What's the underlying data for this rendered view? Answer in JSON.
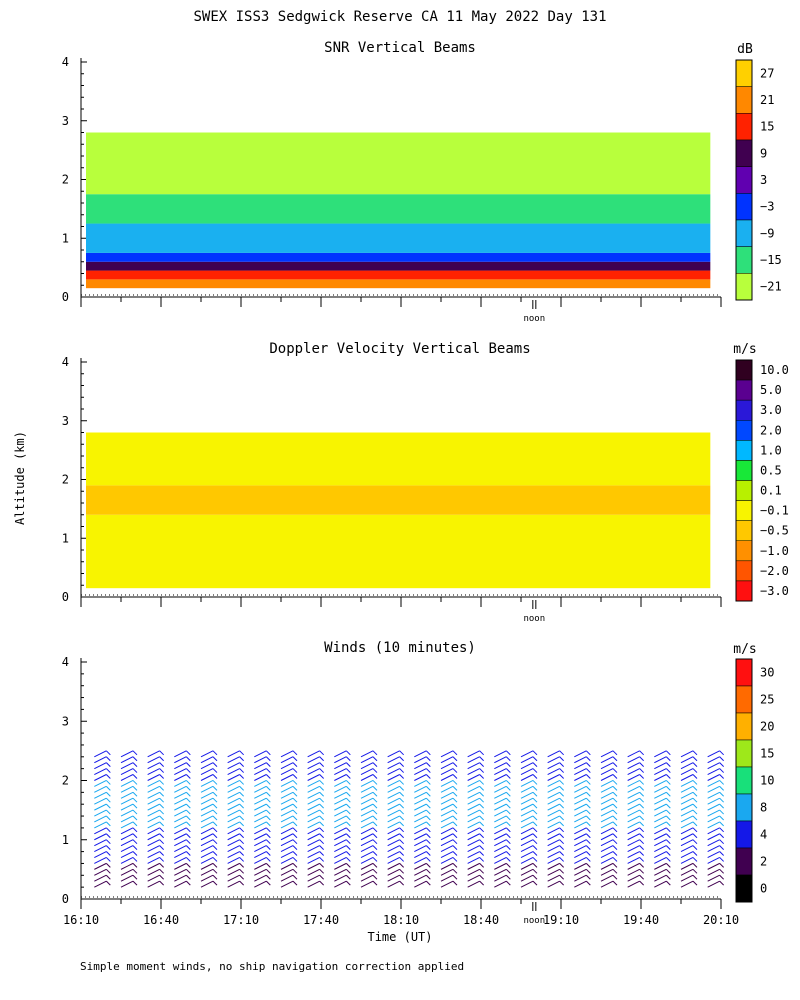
{
  "title": "SWEX ISS3 Sedgwick Reserve CA  11 May 2022 Day 131",
  "y_axis_label": "Altitude (km)",
  "x_axis_label": "Time (UT)",
  "footnote": "Simple moment winds, no ship navigation correction applied",
  "noon_label": "noon",
  "chart_data": [
    {
      "type": "heatmap",
      "title": "SNR Vertical Beams",
      "unit": "dB",
      "ylim": [
        0,
        4
      ],
      "yticks": [
        "0",
        "1",
        "2",
        "3",
        "4"
      ],
      "colorbar": {
        "labels": [
          "27",
          "21",
          "15",
          "9",
          "3",
          "−3",
          "−9",
          "−15",
          "−21"
        ],
        "colors": [
          "#ffd000",
          "#ff8800",
          "#ff2200",
          "#400050",
          "#6000b0",
          "#0033ff",
          "#1ab0f0",
          "#2ee07a",
          "#b8ff3c"
        ]
      },
      "profile_colors_by_altitude": [
        {
          "below_km": 0.3,
          "color": "#ff8800"
        },
        {
          "below_km": 0.45,
          "color": "#ff2200"
        },
        {
          "below_km": 0.6,
          "color": "#400050"
        },
        {
          "below_km": 0.75,
          "color": "#0033ff"
        },
        {
          "below_km": 1.25,
          "color": "#1ab0f0"
        },
        {
          "below_km": 1.75,
          "color": "#2ee07a"
        },
        {
          "below_km": 2.8,
          "color": "#b8ff3c"
        }
      ]
    },
    {
      "type": "heatmap",
      "title": "Doppler Velocity Vertical Beams",
      "unit": "m/s",
      "ylim": [
        0,
        4
      ],
      "yticks": [
        "0",
        "1",
        "2",
        "3",
        "4"
      ],
      "colorbar": {
        "labels": [
          "10.0",
          "5.0",
          "3.0",
          "2.0",
          "1.0",
          "0.5",
          "0.1",
          "−0.1",
          "−0.5",
          "−1.0",
          "−2.0",
          "−3.0"
        ],
        "colors": [
          "#300020",
          "#5a0090",
          "#2a18d8",
          "#0048ff",
          "#00b8ff",
          "#18e838",
          "#b8f000",
          "#f8f400",
          "#ffc800",
          "#ff9000",
          "#ff5500",
          "#ff1010"
        ]
      },
      "profile_colors_by_altitude": [
        {
          "below_km": 1.4,
          "color": "#f8f400"
        },
        {
          "below_km": 1.9,
          "color": "#ffc800"
        },
        {
          "below_km": 2.8,
          "color": "#f8f400"
        }
      ]
    },
    {
      "type": "scatter",
      "title": "Winds (10 minutes)",
      "unit": "m/s",
      "ylim": [
        0,
        4
      ],
      "yticks": [
        "0",
        "1",
        "2",
        "3",
        "4"
      ],
      "colorbar": {
        "labels": [
          "30",
          "25",
          "20",
          "15",
          "10",
          "8",
          "4",
          "2",
          "0"
        ],
        "colors": [
          "#ff1010",
          "#ff6a00",
          "#ffb000",
          "#9ee81a",
          "#18e07a",
          "#1aa8f0",
          "#1418e8",
          "#400050",
          "#000000"
        ]
      },
      "profile_colors_by_altitude": [
        {
          "below_km": 0.6,
          "color": "#400050"
        },
        {
          "below_km": 1.2,
          "color": "#1418e8"
        },
        {
          "below_km": 2.0,
          "color": "#1aa8f0"
        },
        {
          "below_km": 2.6,
          "color": "#1418e8"
        }
      ]
    }
  ],
  "x_axis": {
    "range_hours_utc": [
      16.1667,
      20.1667
    ],
    "tick_labels": [
      {
        "t": 16.1667,
        "label": "16:10"
      },
      {
        "t": 16.6667,
        "label": "16:40"
      },
      {
        "t": 17.1667,
        "label": "17:10"
      },
      {
        "t": 17.6667,
        "label": "17:40"
      },
      {
        "t": 18.1667,
        "label": "18:10"
      },
      {
        "t": 18.6667,
        "label": "18:40"
      },
      {
        "t": 19.1667,
        "label": "19:10"
      },
      {
        "t": 19.6667,
        "label": "19:40"
      },
      {
        "t": 20.1667,
        "label": "20:10"
      }
    ],
    "noon_time_utc": 19.0
  },
  "profile_times_utc": [
    16.25,
    16.4167,
    16.5833,
    16.75,
    16.9167,
    17.0833,
    17.25,
    17.4167,
    17.5833,
    17.75,
    17.9167,
    18.0833,
    18.25,
    18.4167,
    18.5833,
    18.75,
    18.9167,
    19.0833,
    19.25,
    19.4167,
    19.5833,
    19.75,
    19.9167,
    20.0833
  ]
}
